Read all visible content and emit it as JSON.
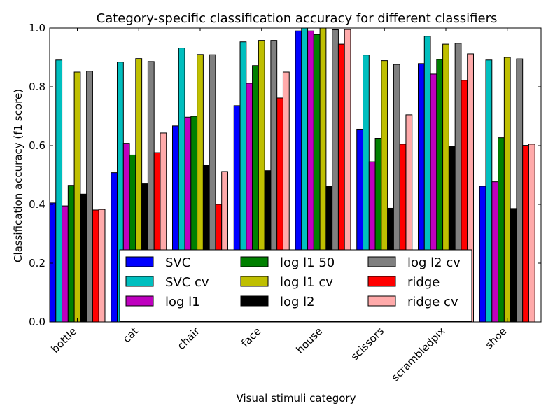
{
  "chart_data": {
    "type": "bar",
    "title": "Category-specific classification accuracy for different classifiers",
    "xlabel": "Visual stimuli category",
    "ylabel": "Classification accuracy (f1 score)",
    "ylim": [
      0,
      1
    ],
    "yticks": [
      "0.0",
      "0.2",
      "0.4",
      "0.6",
      "0.8",
      "1.0"
    ],
    "grid": false,
    "legend_position": "lower center",
    "categories": [
      "bottle",
      "cat",
      "chair",
      "face",
      "house",
      "scissors",
      "scrambledpix",
      "shoe"
    ],
    "series": [
      {
        "name": "SVC",
        "color": "#0000ff",
        "values": [
          0.405,
          0.508,
          0.667,
          0.736,
          0.99,
          0.656,
          0.879,
          0.462
        ]
      },
      {
        "name": "SVC cv",
        "color": "#00bfbf",
        "values": [
          0.891,
          0.884,
          0.932,
          0.953,
          1.0,
          0.908,
          0.972,
          0.891
        ]
      },
      {
        "name": "log l1",
        "color": "#bf00bf",
        "values": [
          0.395,
          0.608,
          0.697,
          0.812,
          0.99,
          0.545,
          0.843,
          0.477
        ]
      },
      {
        "name": "log l1 50",
        "color": "#008000",
        "values": [
          0.465,
          0.568,
          0.7,
          0.872,
          0.978,
          0.625,
          0.893,
          0.627
        ]
      },
      {
        "name": "log l1 cv",
        "color": "#bfbf00",
        "values": [
          0.85,
          0.896,
          0.91,
          0.958,
          1.0,
          0.889,
          0.945,
          0.9
        ]
      },
      {
        "name": "log l2",
        "color": "#000000",
        "values": [
          0.435,
          0.47,
          0.533,
          0.515,
          0.462,
          0.387,
          0.597,
          0.386
        ]
      },
      {
        "name": "log l2 cv",
        "color": "#808080",
        "values": [
          0.853,
          0.886,
          0.909,
          0.958,
          0.994,
          0.876,
          0.948,
          0.895
        ]
      },
      {
        "name": "ridge",
        "color": "#ff0000",
        "values": [
          0.381,
          0.576,
          0.4,
          0.762,
          0.945,
          0.605,
          0.822,
          0.601
        ]
      },
      {
        "name": "ridge cv",
        "color": "#ffaaaa",
        "values": [
          0.383,
          0.643,
          0.512,
          0.85,
          0.995,
          0.705,
          0.912,
          0.605
        ]
      }
    ]
  }
}
